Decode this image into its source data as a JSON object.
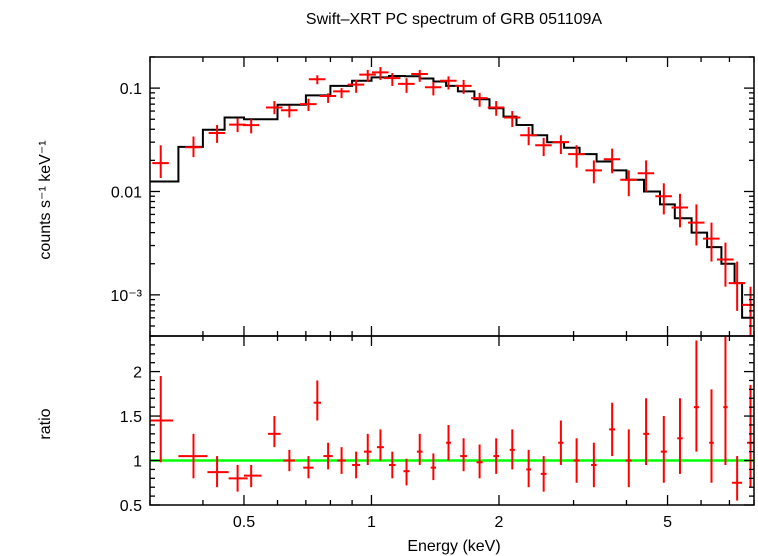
{
  "chart_data": [
    {
      "panel": "spectrum",
      "type": "scatter",
      "title": "Swift–XRT PC spectrum of GRB 051109A",
      "ylabel": "counts s⁻¹ keV⁻¹",
      "xscale": "log",
      "yscale": "log",
      "xlim": [
        0.3,
        8.0
      ],
      "ylim": [
        0.0004,
        0.2
      ],
      "yticks": [
        {
          "value": 0.001,
          "label": "10⁻³"
        },
        {
          "value": 0.01,
          "label": "0.01"
        },
        {
          "value": 0.1,
          "label": "0.1"
        }
      ],
      "series": [
        {
          "type": "errorbar",
          "color": "#ff0000",
          "points": [
            [
              0.318,
              0.0188,
              0.028,
              0.0135,
              0.024
            ],
            [
              0.38,
              0.0268,
              0.034,
              0.0215,
              0.031
            ],
            [
              0.432,
              0.0368,
              0.044,
              0.0295,
              0.044
            ],
            [
              0.483,
              0.0443,
              0.051,
              0.0375,
              0.053
            ],
            [
              0.52,
              0.0438,
              0.05,
              0.0365,
              0.052
            ],
            [
              0.59,
              0.065,
              0.075,
              0.056,
              0.078
            ],
            [
              0.64,
              0.061,
              0.068,
              0.052,
              0.072
            ],
            [
              0.71,
              0.07,
              0.079,
              0.06,
              0.083
            ],
            [
              0.745,
              0.122,
              0.133,
              0.109,
              0.16
            ],
            [
              0.79,
              0.084,
              0.089,
              0.072,
              0.098
            ],
            [
              0.85,
              0.093,
              0.1,
              0.08,
              0.11
            ],
            [
              0.92,
              0.108,
              0.12,
              0.09,
              0.13
            ],
            [
              0.98,
              0.135,
              0.15,
              0.115,
              0.165
            ],
            [
              1.05,
              0.142,
              0.16,
              0.12,
              0.175
            ],
            [
              1.12,
              0.125,
              0.14,
              0.105,
              0.15
            ],
            [
              1.21,
              0.11,
              0.125,
              0.09,
              0.135
            ],
            [
              1.3,
              0.137,
              0.15,
              0.115,
              0.165
            ],
            [
              1.4,
              0.102,
              0.115,
              0.085,
              0.125
            ],
            [
              1.52,
              0.118,
              0.13,
              0.097,
              0.145
            ],
            [
              1.65,
              0.105,
              0.12,
              0.088,
              0.13
            ],
            [
              1.8,
              0.08,
              0.09,
              0.066,
              0.098
            ],
            [
              1.97,
              0.065,
              0.075,
              0.054,
              0.08
            ],
            [
              2.15,
              0.052,
              0.06,
              0.042,
              0.064
            ],
            [
              2.35,
              0.035,
              0.042,
              0.028,
              0.045
            ],
            [
              2.55,
              0.028,
              0.033,
              0.022,
              0.036
            ],
            [
              2.8,
              0.03,
              0.035,
              0.023,
              0.039
            ],
            [
              3.05,
              0.023,
              0.028,
              0.017,
              0.031
            ],
            [
              3.35,
              0.016,
              0.02,
              0.012,
              0.022
            ],
            [
              3.7,
              0.0205,
              0.026,
              0.015,
              0.028
            ],
            [
              4.05,
              0.013,
              0.016,
              0.009,
              0.019
            ],
            [
              4.45,
              0.015,
              0.02,
              0.01,
              0.022
            ],
            [
              4.9,
              0.009,
              0.012,
              0.006,
              0.014
            ],
            [
              5.35,
              0.007,
              0.0095,
              0.0045,
              0.011
            ],
            [
              5.85,
              0.005,
              0.0075,
              0.003,
              0.0085
            ],
            [
              6.35,
              0.0035,
              0.005,
              0.0021,
              0.006
            ],
            [
              6.85,
              0.0022,
              0.0032,
              0.0012,
              0.004
            ],
            [
              7.3,
              0.0013,
              0.0021,
              0.0007,
              0.0028
            ],
            [
              7.85,
              0.0008,
              0.0012,
              0.0004,
              0.0016
            ]
          ]
        },
        {
          "type": "step",
          "color": "#000000",
          "edges": [
            0.3,
            0.35,
            0.4,
            0.45,
            0.5,
            0.6,
            0.7,
            0.8,
            0.9,
            1.0,
            1.1,
            1.2,
            1.3,
            1.4,
            1.5,
            1.6,
            1.75,
            1.9,
            2.05,
            2.2,
            2.4,
            2.6,
            2.85,
            3.1,
            3.4,
            3.7,
            4.0,
            4.4,
            4.8,
            5.2,
            5.7,
            6.2,
            6.7,
            7.2,
            7.5,
            8.0
          ],
          "values": [
            0.0125,
            0.027,
            0.0395,
            0.052,
            0.05,
            0.069,
            0.085,
            0.105,
            0.118,
            0.127,
            0.131,
            0.13,
            0.124,
            0.116,
            0.105,
            0.093,
            0.078,
            0.064,
            0.053,
            0.044,
            0.035,
            0.03,
            0.0265,
            0.023,
            0.0195,
            0.016,
            0.013,
            0.01,
            0.0075,
            0.0055,
            0.004,
            0.0029,
            0.002,
            0.0013,
            0.0006
          ]
        }
      ]
    },
    {
      "panel": "ratio",
      "type": "scatter",
      "xlabel": "Energy (keV)",
      "ylabel": "ratio",
      "xscale": "log",
      "xlim": [
        0.3,
        8.0
      ],
      "ylim": [
        0.5,
        2.4
      ],
      "xticks": [
        {
          "value": 0.5,
          "label": "0.5"
        },
        {
          "value": 1,
          "label": "1"
        },
        {
          "value": 2,
          "label": "2"
        },
        {
          "value": 5,
          "label": "5"
        }
      ],
      "yticks": [
        {
          "value": 0.5,
          "label": "0.5"
        },
        {
          "value": 1.0,
          "label": "1"
        },
        {
          "value": 1.5,
          "label": "1.5"
        },
        {
          "value": 2.0,
          "label": "2"
        }
      ],
      "reference_line": {
        "value": 1.0,
        "color": "#00ff00"
      },
      "series": [
        {
          "type": "errorbar",
          "color": "#ff0000",
          "points": [
            [
              0.318,
              1.45,
              0.98,
              1.95,
              0.3,
              0.34
            ],
            [
              0.38,
              1.05,
              0.8,
              1.3,
              0.35,
              0.41
            ],
            [
              0.432,
              0.87,
              0.7,
              1.05,
              0.41,
              0.46
            ],
            [
              0.483,
              0.8,
              0.65,
              0.95,
              0.46,
              0.51
            ],
            [
              0.52,
              0.83,
              0.7,
              0.95,
              0.5,
              0.55
            ],
            [
              0.59,
              1.3,
              1.15,
              1.5,
              0.57,
              0.61
            ],
            [
              0.64,
              1.0,
              0.88,
              1.12,
              0.62,
              0.66
            ],
            [
              0.71,
              0.92,
              0.8,
              1.05,
              0.69,
              0.73
            ],
            [
              0.745,
              1.65,
              1.45,
              1.9,
              0.73,
              0.76
            ],
            [
              0.79,
              1.05,
              0.9,
              1.2,
              0.77,
              0.81
            ],
            [
              0.85,
              1.0,
              0.85,
              1.15,
              0.83,
              0.87
            ],
            [
              0.92,
              0.95,
              0.8,
              1.1,
              0.9,
              0.94
            ],
            [
              0.98,
              1.1,
              0.95,
              1.3,
              0.96,
              1.0
            ],
            [
              1.05,
              1.15,
              1.0,
              1.35,
              1.03,
              1.07
            ],
            [
              1.12,
              0.95,
              0.8,
              1.1,
              1.1,
              1.14
            ],
            [
              1.21,
              0.88,
              0.72,
              1.02,
              1.19,
              1.23
            ],
            [
              1.3,
              1.1,
              0.95,
              1.3,
              1.28,
              1.32
            ],
            [
              1.4,
              0.92,
              0.78,
              1.08,
              1.38,
              1.42
            ],
            [
              1.52,
              1.2,
              1.0,
              1.4,
              1.5,
              1.54
            ],
            [
              1.65,
              1.05,
              0.88,
              1.25,
              1.62,
              1.68
            ],
            [
              1.8,
              0.98,
              0.8,
              1.18,
              1.77,
              1.83
            ],
            [
              1.97,
              1.05,
              0.85,
              1.25,
              1.94,
              2.0
            ],
            [
              2.15,
              1.12,
              0.9,
              1.35,
              2.12,
              2.18
            ],
            [
              2.35,
              0.9,
              0.7,
              1.12,
              2.32,
              2.38
            ],
            [
              2.55,
              0.85,
              0.65,
              1.05,
              2.51,
              2.59
            ],
            [
              2.8,
              1.2,
              0.95,
              1.45,
              2.76,
              2.84
            ],
            [
              3.05,
              1.0,
              0.75,
              1.25,
              3.0,
              3.1
            ],
            [
              3.35,
              0.95,
              0.7,
              1.2,
              3.3,
              3.4
            ],
            [
              3.7,
              1.35,
              1.05,
              1.65,
              3.64,
              3.76
            ],
            [
              4.05,
              1.0,
              0.7,
              1.35,
              3.98,
              4.12
            ],
            [
              4.45,
              1.3,
              0.95,
              1.7,
              4.38,
              4.52
            ],
            [
              4.9,
              1.1,
              0.75,
              1.5,
              4.82,
              4.98
            ],
            [
              5.35,
              1.25,
              0.85,
              1.7,
              5.27,
              5.43
            ],
            [
              5.85,
              1.6,
              1.1,
              2.35,
              5.77,
              5.93
            ],
            [
              6.35,
              1.2,
              0.75,
              1.8,
              6.27,
              6.43
            ],
            [
              6.85,
              1.6,
              0.95,
              2.4,
              6.77,
              6.93
            ],
            [
              7.3,
              0.75,
              0.55,
              1.05,
              7.1,
              7.5
            ],
            [
              7.85,
              1.2,
              0.7,
              1.85,
              7.7,
              8.0
            ]
          ]
        }
      ]
    }
  ]
}
